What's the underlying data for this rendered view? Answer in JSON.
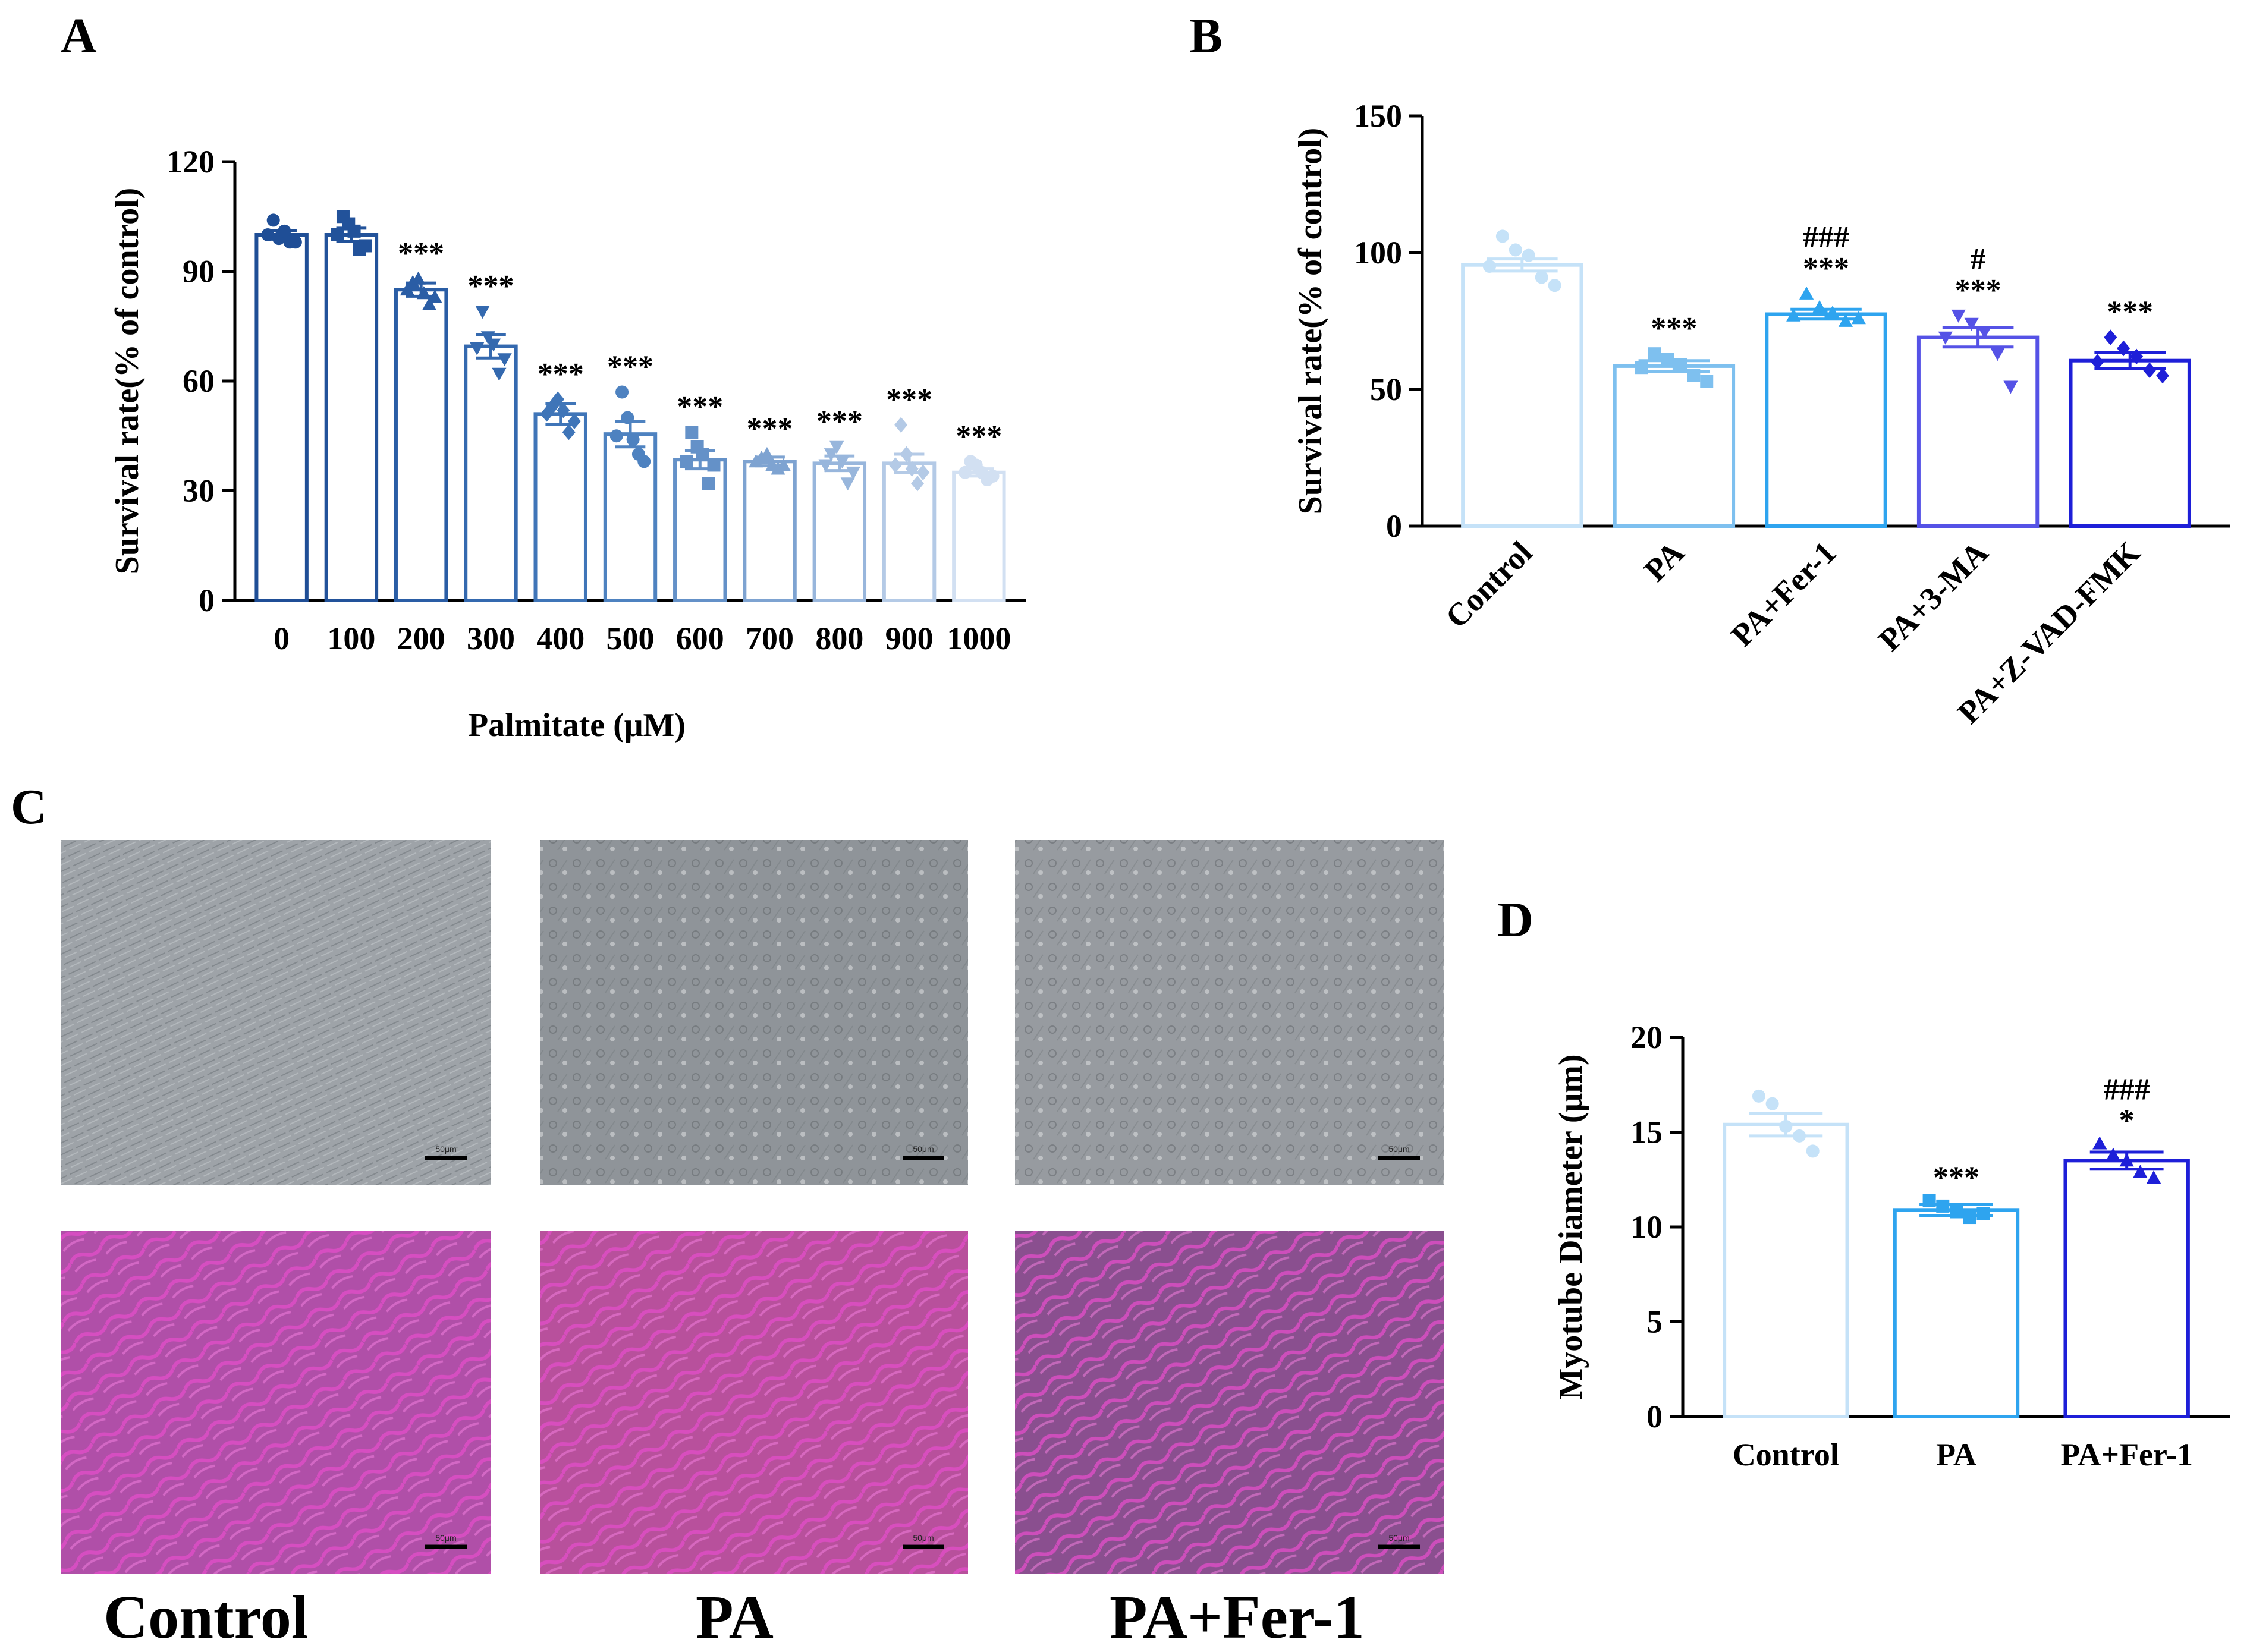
{
  "panels": {
    "A": "A",
    "B": "B",
    "C": "C",
    "D": "D"
  },
  "captions": [
    "Control",
    "PA",
    "PA+Fer-1"
  ],
  "scale_text": "50μm",
  "image_tones": {
    "bright_field": [
      "#9ea3a8",
      "#8f9499",
      "#979ba0"
    ],
    "stained": [
      "#b04fa8",
      "#b8509c",
      "#8a4f8f"
    ]
  },
  "chart_data": [
    {
      "type": "bar",
      "ylabel": "Survival rate(% of control)",
      "xlabel": "Palmitate (μM)",
      "ylim": [
        0,
        120
      ],
      "yticks": [
        0,
        30,
        60,
        90,
        120
      ],
      "grid": false,
      "categories": [
        "0",
        "100",
        "200",
        "300",
        "400",
        "500",
        "600",
        "700",
        "800",
        "900",
        "1000"
      ],
      "values": [
        100,
        100,
        85,
        69.5,
        51,
        45.5,
        38.5,
        38,
        37.5,
        37.5,
        35
      ],
      "sem": [
        1.2,
        1.8,
        1.8,
        3.2,
        2.8,
        3.5,
        2.5,
        1.2,
        2.0,
        2.5,
        1.0
      ],
      "points": [
        [
          100,
          104,
          99,
          101,
          98,
          98
        ],
        [
          100,
          105,
          103,
          101,
          96,
          97
        ],
        [
          85,
          87,
          88,
          84,
          81,
          83
        ],
        [
          69,
          79,
          72,
          70,
          62,
          66
        ],
        [
          51,
          53,
          55,
          52,
          46,
          49
        ],
        [
          45,
          57,
          50,
          44,
          40,
          38
        ],
        [
          38,
          46,
          42,
          40,
          32,
          37
        ],
        [
          38,
          39,
          40,
          37,
          36,
          37
        ],
        [
          37,
          40,
          42,
          38,
          32,
          35
        ],
        [
          37,
          48,
          40,
          36,
          32,
          35
        ],
        [
          35,
          38,
          37,
          35,
          33,
          34
        ]
      ],
      "markers": [
        "circle",
        "square",
        "triangle",
        "triangle-down",
        "diamond",
        "circle",
        "square",
        "triangle",
        "triangle-down",
        "diamond",
        "circle"
      ],
      "colors": [
        "#1f4e96",
        "#22529a",
        "#2a5da5",
        "#3469af",
        "#3f75b8",
        "#4e82c0",
        "#6491c8",
        "#7ea3d1",
        "#98b6dc",
        "#b4cae6",
        "#d2e0f2"
      ],
      "significance": [
        "",
        "",
        "***",
        "***",
        "***",
        "***",
        "***",
        "***",
        "***",
        "***",
        "***"
      ]
    },
    {
      "type": "bar",
      "ylabel": "Survival rate(% of control)",
      "ylim": [
        0,
        150
      ],
      "yticks": [
        0,
        50,
        100,
        150
      ],
      "grid": false,
      "categories": [
        "Control",
        "PA",
        "PA+Fer-1",
        "PA+3-MA",
        "PA+Z-VAD-FMK"
      ],
      "values": [
        95.5,
        58.5,
        77.5,
        69,
        60.5
      ],
      "sem": [
        2.2,
        2.0,
        1.8,
        3.5,
        3.0
      ],
      "points": [
        [
          95,
          106,
          101,
          99,
          91,
          88
        ],
        [
          58,
          63,
          61,
          59,
          55,
          53
        ],
        [
          77,
          85,
          80,
          78,
          75,
          76
        ],
        [
          69,
          77,
          74,
          71,
          63,
          51
        ],
        [
          60,
          69,
          65,
          62,
          57,
          55
        ]
      ],
      "markers": [
        "circle",
        "square",
        "triangle",
        "triangle-down",
        "diamond"
      ],
      "colors": [
        "#c5e2f8",
        "#7ec0ef",
        "#2ea4ef",
        "#5552e6",
        "#1e1fd8"
      ],
      "significance": [
        "",
        "***",
        "***",
        "***",
        "***"
      ],
      "significance2": [
        "",
        "",
        "###",
        "#",
        ""
      ]
    },
    {
      "type": "bar",
      "ylabel": "Myotube Diameter (μm)",
      "ylim": [
        0,
        20
      ],
      "yticks": [
        0,
        5,
        10,
        15,
        20
      ],
      "grid": false,
      "categories": [
        "Control",
        "PA",
        "PA+Fer-1"
      ],
      "values": [
        15.4,
        10.9,
        13.5
      ],
      "sem": [
        0.6,
        0.3,
        0.45
      ],
      "points": [
        [
          16.9,
          16.5,
          15.3,
          14.8,
          14.0
        ],
        [
          11.4,
          11.1,
          10.8,
          10.5,
          10.7
        ],
        [
          14.4,
          13.8,
          13.5,
          12.9,
          12.6
        ]
      ],
      "markers": [
        "circle",
        "square",
        "triangle"
      ],
      "colors": [
        "#c5e2f8",
        "#2ea4ef",
        "#1e1fd8"
      ],
      "significance": [
        "",
        "***",
        "*"
      ],
      "significance2": [
        "",
        "",
        "###"
      ]
    }
  ]
}
